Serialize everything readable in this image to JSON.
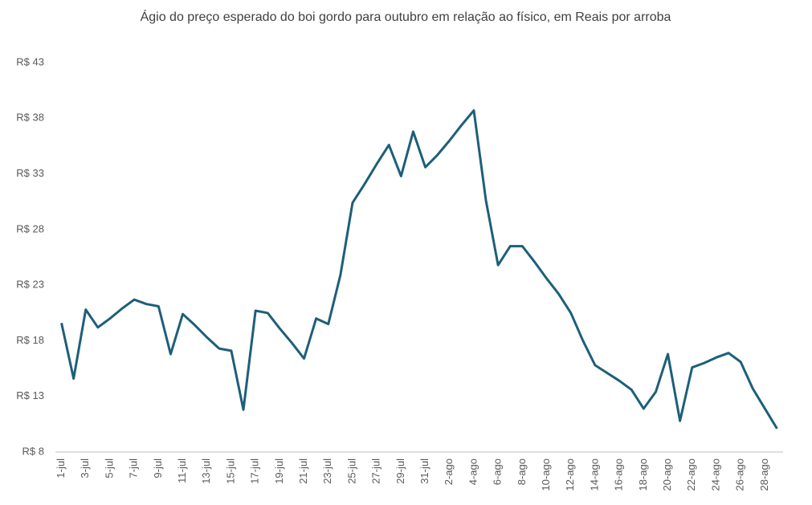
{
  "chart_data": {
    "type": "line",
    "title": "Ágio do preço esperado do boi gordo para outubro em relação ao físico, em Reais por arroba",
    "categories": [
      "1-jul",
      null,
      "3-jul",
      null,
      "5-jul",
      null,
      "7-jul",
      null,
      "9-jul",
      null,
      "11-jul",
      null,
      "13-jul",
      null,
      "15-jul",
      null,
      "17-jul",
      null,
      "19-jul",
      null,
      "21-jul",
      null,
      "23-jul",
      null,
      "25-jul",
      null,
      "27-jul",
      null,
      "29-jul",
      null,
      "31-jul",
      null,
      "2-ago",
      null,
      "4-ago",
      null,
      "6-ago",
      null,
      "8-ago",
      null,
      "10-ago",
      null,
      "12-ago",
      null,
      "14-ago",
      null,
      "16-ago",
      null,
      "18-ago",
      null,
      "20-ago",
      null,
      "22-ago",
      null,
      "24-ago",
      null,
      "26-ago",
      null,
      "28-ago",
      null
    ],
    "series": [
      {
        "color": "#1d5f7a",
        "values": [
          19.6,
          14.6,
          20.8,
          19.2,
          20.0,
          20.9,
          21.7,
          21.3,
          21.1,
          16.8,
          20.4,
          19.4,
          18.3,
          17.3,
          17.1,
          11.8,
          20.7,
          20.5,
          19.1,
          17.8,
          16.4,
          20.0,
          19.5,
          23.9,
          30.4,
          32.1,
          33.9,
          35.6,
          32.8,
          36.8,
          33.6,
          34.7,
          36.0,
          37.4,
          38.7,
          30.6,
          24.8,
          26.5,
          26.5,
          25.1,
          23.6,
          22.2,
          20.5,
          18.0,
          15.8,
          15.1,
          14.4,
          13.6,
          11.9,
          13.4,
          16.8,
          10.8,
          15.6,
          16.0,
          16.5,
          16.9,
          16.1,
          13.7,
          11.9,
          10.1
        ]
      }
    ],
    "ylim": [
      8,
      43
    ],
    "yticks": [
      {
        "value": 8,
        "label": "R$ 8"
      },
      {
        "value": 13,
        "label": "R$ 13"
      },
      {
        "value": 18,
        "label": "R$ 18"
      },
      {
        "value": 23,
        "label": "R$ 23"
      },
      {
        "value": 28,
        "label": "R$ 28"
      },
      {
        "value": 33,
        "label": "R$ 33"
      },
      {
        "value": 38,
        "label": "R$ 38"
      },
      {
        "value": 43,
        "label": "R$ 43"
      }
    ],
    "grid": false
  }
}
